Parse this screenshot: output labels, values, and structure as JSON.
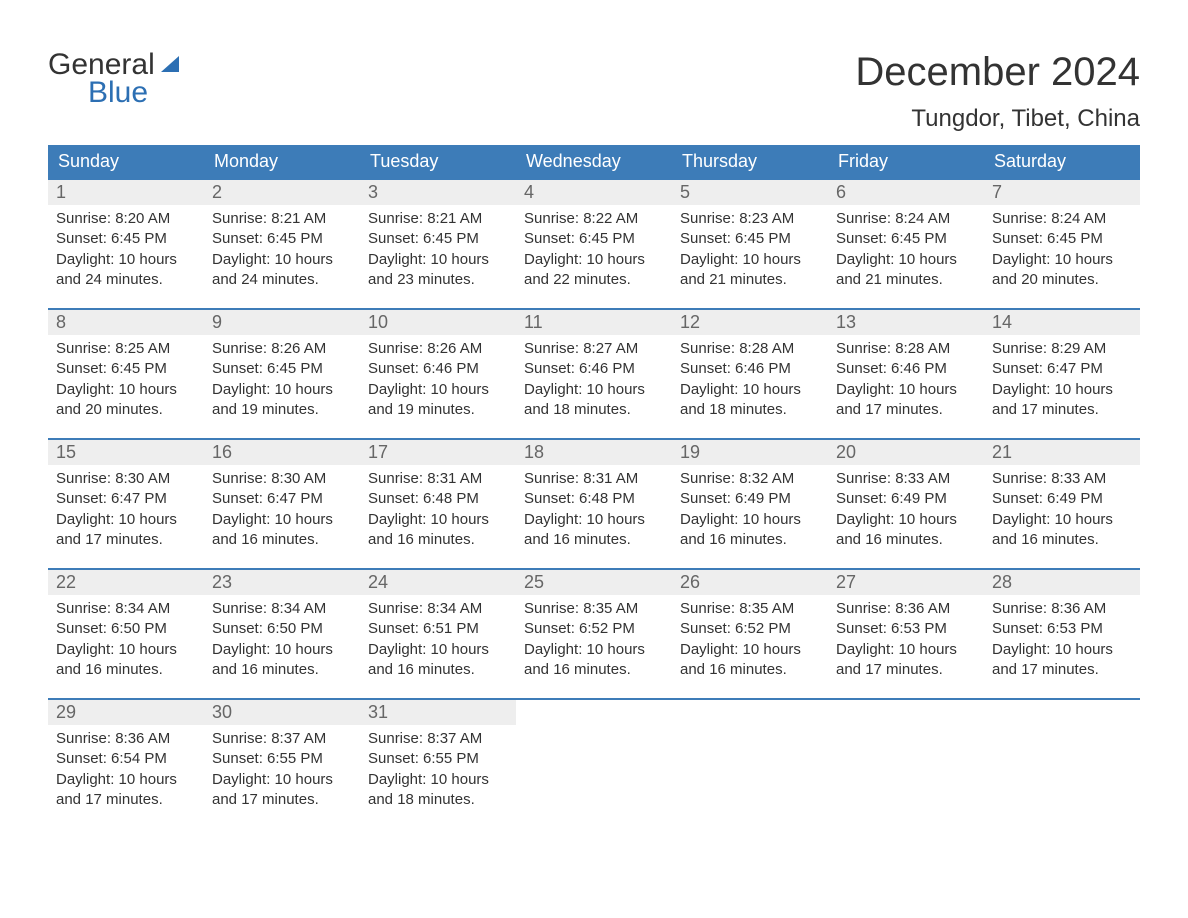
{
  "logo": {
    "word1": "General",
    "word2": "Blue"
  },
  "title": "December 2024",
  "location": "Tungdor, Tibet, China",
  "colors": {
    "header_bg": "#3d7cb8",
    "header_text": "#ffffff",
    "daynum_bg": "#eeeeee",
    "daynum_text": "#666666",
    "border": "#3d7cb8",
    "body_text": "#333333",
    "logo_blue": "#2c6fb3",
    "background": "#ffffff"
  },
  "fonts": {
    "title_size_pt": 30,
    "location_size_pt": 18,
    "dayheader_size_pt": 13,
    "daynum_size_pt": 13,
    "detail_size_pt": 11
  },
  "day_headers": [
    "Sunday",
    "Monday",
    "Tuesday",
    "Wednesday",
    "Thursday",
    "Friday",
    "Saturday"
  ],
  "weeks": [
    [
      {
        "n": "1",
        "sunrise": "Sunrise: 8:20 AM",
        "sunset": "Sunset: 6:45 PM",
        "day1": "Daylight: 10 hours",
        "day2": "and 24 minutes."
      },
      {
        "n": "2",
        "sunrise": "Sunrise: 8:21 AM",
        "sunset": "Sunset: 6:45 PM",
        "day1": "Daylight: 10 hours",
        "day2": "and 24 minutes."
      },
      {
        "n": "3",
        "sunrise": "Sunrise: 8:21 AM",
        "sunset": "Sunset: 6:45 PM",
        "day1": "Daylight: 10 hours",
        "day2": "and 23 minutes."
      },
      {
        "n": "4",
        "sunrise": "Sunrise: 8:22 AM",
        "sunset": "Sunset: 6:45 PM",
        "day1": "Daylight: 10 hours",
        "day2": "and 22 minutes."
      },
      {
        "n": "5",
        "sunrise": "Sunrise: 8:23 AM",
        "sunset": "Sunset: 6:45 PM",
        "day1": "Daylight: 10 hours",
        "day2": "and 21 minutes."
      },
      {
        "n": "6",
        "sunrise": "Sunrise: 8:24 AM",
        "sunset": "Sunset: 6:45 PM",
        "day1": "Daylight: 10 hours",
        "day2": "and 21 minutes."
      },
      {
        "n": "7",
        "sunrise": "Sunrise: 8:24 AM",
        "sunset": "Sunset: 6:45 PM",
        "day1": "Daylight: 10 hours",
        "day2": "and 20 minutes."
      }
    ],
    [
      {
        "n": "8",
        "sunrise": "Sunrise: 8:25 AM",
        "sunset": "Sunset: 6:45 PM",
        "day1": "Daylight: 10 hours",
        "day2": "and 20 minutes."
      },
      {
        "n": "9",
        "sunrise": "Sunrise: 8:26 AM",
        "sunset": "Sunset: 6:45 PM",
        "day1": "Daylight: 10 hours",
        "day2": "and 19 minutes."
      },
      {
        "n": "10",
        "sunrise": "Sunrise: 8:26 AM",
        "sunset": "Sunset: 6:46 PM",
        "day1": "Daylight: 10 hours",
        "day2": "and 19 minutes."
      },
      {
        "n": "11",
        "sunrise": "Sunrise: 8:27 AM",
        "sunset": "Sunset: 6:46 PM",
        "day1": "Daylight: 10 hours",
        "day2": "and 18 minutes."
      },
      {
        "n": "12",
        "sunrise": "Sunrise: 8:28 AM",
        "sunset": "Sunset: 6:46 PM",
        "day1": "Daylight: 10 hours",
        "day2": "and 18 minutes."
      },
      {
        "n": "13",
        "sunrise": "Sunrise: 8:28 AM",
        "sunset": "Sunset: 6:46 PM",
        "day1": "Daylight: 10 hours",
        "day2": "and 17 minutes."
      },
      {
        "n": "14",
        "sunrise": "Sunrise: 8:29 AM",
        "sunset": "Sunset: 6:47 PM",
        "day1": "Daylight: 10 hours",
        "day2": "and 17 minutes."
      }
    ],
    [
      {
        "n": "15",
        "sunrise": "Sunrise: 8:30 AM",
        "sunset": "Sunset: 6:47 PM",
        "day1": "Daylight: 10 hours",
        "day2": "and 17 minutes."
      },
      {
        "n": "16",
        "sunrise": "Sunrise: 8:30 AM",
        "sunset": "Sunset: 6:47 PM",
        "day1": "Daylight: 10 hours",
        "day2": "and 16 minutes."
      },
      {
        "n": "17",
        "sunrise": "Sunrise: 8:31 AM",
        "sunset": "Sunset: 6:48 PM",
        "day1": "Daylight: 10 hours",
        "day2": "and 16 minutes."
      },
      {
        "n": "18",
        "sunrise": "Sunrise: 8:31 AM",
        "sunset": "Sunset: 6:48 PM",
        "day1": "Daylight: 10 hours",
        "day2": "and 16 minutes."
      },
      {
        "n": "19",
        "sunrise": "Sunrise: 8:32 AM",
        "sunset": "Sunset: 6:49 PM",
        "day1": "Daylight: 10 hours",
        "day2": "and 16 minutes."
      },
      {
        "n": "20",
        "sunrise": "Sunrise: 8:33 AM",
        "sunset": "Sunset: 6:49 PM",
        "day1": "Daylight: 10 hours",
        "day2": "and 16 minutes."
      },
      {
        "n": "21",
        "sunrise": "Sunrise: 8:33 AM",
        "sunset": "Sunset: 6:49 PM",
        "day1": "Daylight: 10 hours",
        "day2": "and 16 minutes."
      }
    ],
    [
      {
        "n": "22",
        "sunrise": "Sunrise: 8:34 AM",
        "sunset": "Sunset: 6:50 PM",
        "day1": "Daylight: 10 hours",
        "day2": "and 16 minutes."
      },
      {
        "n": "23",
        "sunrise": "Sunrise: 8:34 AM",
        "sunset": "Sunset: 6:50 PM",
        "day1": "Daylight: 10 hours",
        "day2": "and 16 minutes."
      },
      {
        "n": "24",
        "sunrise": "Sunrise: 8:34 AM",
        "sunset": "Sunset: 6:51 PM",
        "day1": "Daylight: 10 hours",
        "day2": "and 16 minutes."
      },
      {
        "n": "25",
        "sunrise": "Sunrise: 8:35 AM",
        "sunset": "Sunset: 6:52 PM",
        "day1": "Daylight: 10 hours",
        "day2": "and 16 minutes."
      },
      {
        "n": "26",
        "sunrise": "Sunrise: 8:35 AM",
        "sunset": "Sunset: 6:52 PM",
        "day1": "Daylight: 10 hours",
        "day2": "and 16 minutes."
      },
      {
        "n": "27",
        "sunrise": "Sunrise: 8:36 AM",
        "sunset": "Sunset: 6:53 PM",
        "day1": "Daylight: 10 hours",
        "day2": "and 17 minutes."
      },
      {
        "n": "28",
        "sunrise": "Sunrise: 8:36 AM",
        "sunset": "Sunset: 6:53 PM",
        "day1": "Daylight: 10 hours",
        "day2": "and 17 minutes."
      }
    ],
    [
      {
        "n": "29",
        "sunrise": "Sunrise: 8:36 AM",
        "sunset": "Sunset: 6:54 PM",
        "day1": "Daylight: 10 hours",
        "day2": "and 17 minutes."
      },
      {
        "n": "30",
        "sunrise": "Sunrise: 8:37 AM",
        "sunset": "Sunset: 6:55 PM",
        "day1": "Daylight: 10 hours",
        "day2": "and 17 minutes."
      },
      {
        "n": "31",
        "sunrise": "Sunrise: 8:37 AM",
        "sunset": "Sunset: 6:55 PM",
        "day1": "Daylight: 10 hours",
        "day2": "and 18 minutes."
      },
      null,
      null,
      null,
      null
    ]
  ]
}
